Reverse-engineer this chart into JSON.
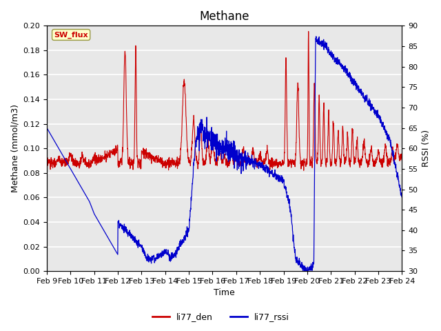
{
  "title": "Methane",
  "ylabel_left": "Methane (mmol/m3)",
  "ylabel_right": "RSSI (%)",
  "xlabel": "Time",
  "ylim_left": [
    0.0,
    0.2
  ],
  "ylim_right": [
    30,
    90
  ],
  "yticks_left": [
    0.0,
    0.02,
    0.04,
    0.06,
    0.08,
    0.1,
    0.12,
    0.14,
    0.16,
    0.18,
    0.2
  ],
  "yticks_right": [
    30,
    35,
    40,
    45,
    50,
    55,
    60,
    65,
    70,
    75,
    80,
    85,
    90
  ],
  "xtick_labels": [
    "Feb 9",
    "Feb 10",
    "Feb 11",
    "Feb 12",
    "Feb 13",
    "Feb 14",
    "Feb 15",
    "Feb 16",
    "Feb 17",
    "Feb 18",
    "Feb 19",
    "Feb 20",
    "Feb 21",
    "Feb 22",
    "Feb 23",
    "Feb 24"
  ],
  "color_den": "#cc0000",
  "color_rssi": "#0000cc",
  "legend_labels": [
    "li77_den",
    "li77_rssi"
  ],
  "annotation_text": "SW_flux",
  "annotation_color": "#cc0000",
  "annotation_bg": "#ffffcc",
  "bg_color": "#e8e8e8",
  "grid_color": "#ffffff",
  "title_fontsize": 12,
  "label_fontsize": 9,
  "tick_fontsize": 8,
  "figsize": [
    6.4,
    4.8
  ],
  "dpi": 100
}
